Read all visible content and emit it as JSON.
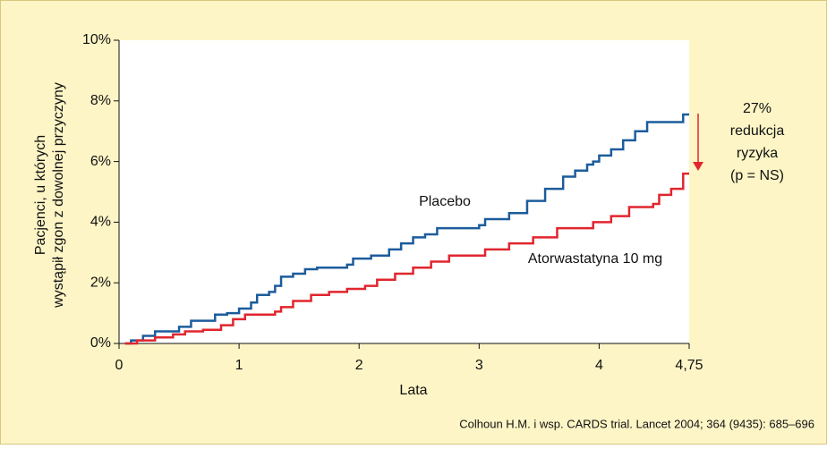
{
  "chart_data": {
    "type": "step",
    "xlabel": "Lata",
    "ylabel": [
      "Pacjenci, u których",
      "wystąpił zgon z dowolnej przyczyny"
    ],
    "xlim": [
      0,
      4.75
    ],
    "ylim": [
      0,
      10
    ],
    "xticks": [
      0,
      1,
      2,
      3,
      4,
      {
        "value": 4.75,
        "label": "4,75"
      }
    ],
    "yticks": [
      {
        "value": 0,
        "label": "0%"
      },
      {
        "value": 2,
        "label": "2%"
      },
      {
        "value": 4,
        "label": "4%"
      },
      {
        "value": 6,
        "label": "6%"
      },
      {
        "value": 8,
        "label": "8%"
      },
      {
        "value": 10,
        "label": "10%"
      }
    ],
    "series": [
      {
        "name": "Placebo",
        "color": "#1c5c9c",
        "x": [
          0.05,
          0.1,
          0.2,
          0.3,
          0.5,
          0.6,
          0.8,
          0.9,
          1.0,
          1.1,
          1.15,
          1.25,
          1.3,
          1.35,
          1.45,
          1.55,
          1.65,
          1.9,
          1.95,
          2.1,
          2.25,
          2.35,
          2.45,
          2.55,
          2.65,
          3.0,
          3.05,
          3.25,
          3.4,
          3.55,
          3.7,
          3.8,
          3.9,
          3.95,
          4.0,
          4.1,
          4.2,
          4.3,
          4.4,
          4.7,
          4.75
        ],
        "values": [
          0,
          0.1,
          0.25,
          0.4,
          0.55,
          0.75,
          0.95,
          1.0,
          1.15,
          1.35,
          1.6,
          1.7,
          1.9,
          2.2,
          2.3,
          2.45,
          2.5,
          2.6,
          2.8,
          2.9,
          3.1,
          3.3,
          3.5,
          3.6,
          3.8,
          3.9,
          4.1,
          4.3,
          4.7,
          5.1,
          5.5,
          5.7,
          5.9,
          6.0,
          6.2,
          6.4,
          6.7,
          7.0,
          7.3,
          7.55,
          7.55
        ]
      },
      {
        "name": "Atorwastatyna 10 mg",
        "color": "#e0262e",
        "x": [
          0.05,
          0.15,
          0.3,
          0.45,
          0.55,
          0.7,
          0.85,
          0.95,
          1.05,
          1.3,
          1.35,
          1.45,
          1.6,
          1.75,
          1.9,
          2.05,
          2.15,
          2.3,
          2.45,
          2.6,
          2.75,
          3.05,
          3.25,
          3.45,
          3.65,
          3.95,
          4.1,
          4.25,
          4.45,
          4.5,
          4.6,
          4.7,
          4.75
        ],
        "values": [
          0,
          0.1,
          0.2,
          0.3,
          0.4,
          0.45,
          0.6,
          0.8,
          0.95,
          1.05,
          1.2,
          1.4,
          1.6,
          1.7,
          1.8,
          1.9,
          2.1,
          2.3,
          2.5,
          2.7,
          2.9,
          3.1,
          3.3,
          3.5,
          3.8,
          4.0,
          4.2,
          4.5,
          4.6,
          4.9,
          5.1,
          5.6,
          5.6
        ]
      }
    ],
    "annotation": [
      "27%",
      "redukcja",
      "ryzyka",
      "(p = NS)"
    ],
    "arrow_color": "#e0262e",
    "source": "Colhoun H.M. i wsp. CARDS trial. Lancet 2004; 364 (9435): 685–696"
  }
}
